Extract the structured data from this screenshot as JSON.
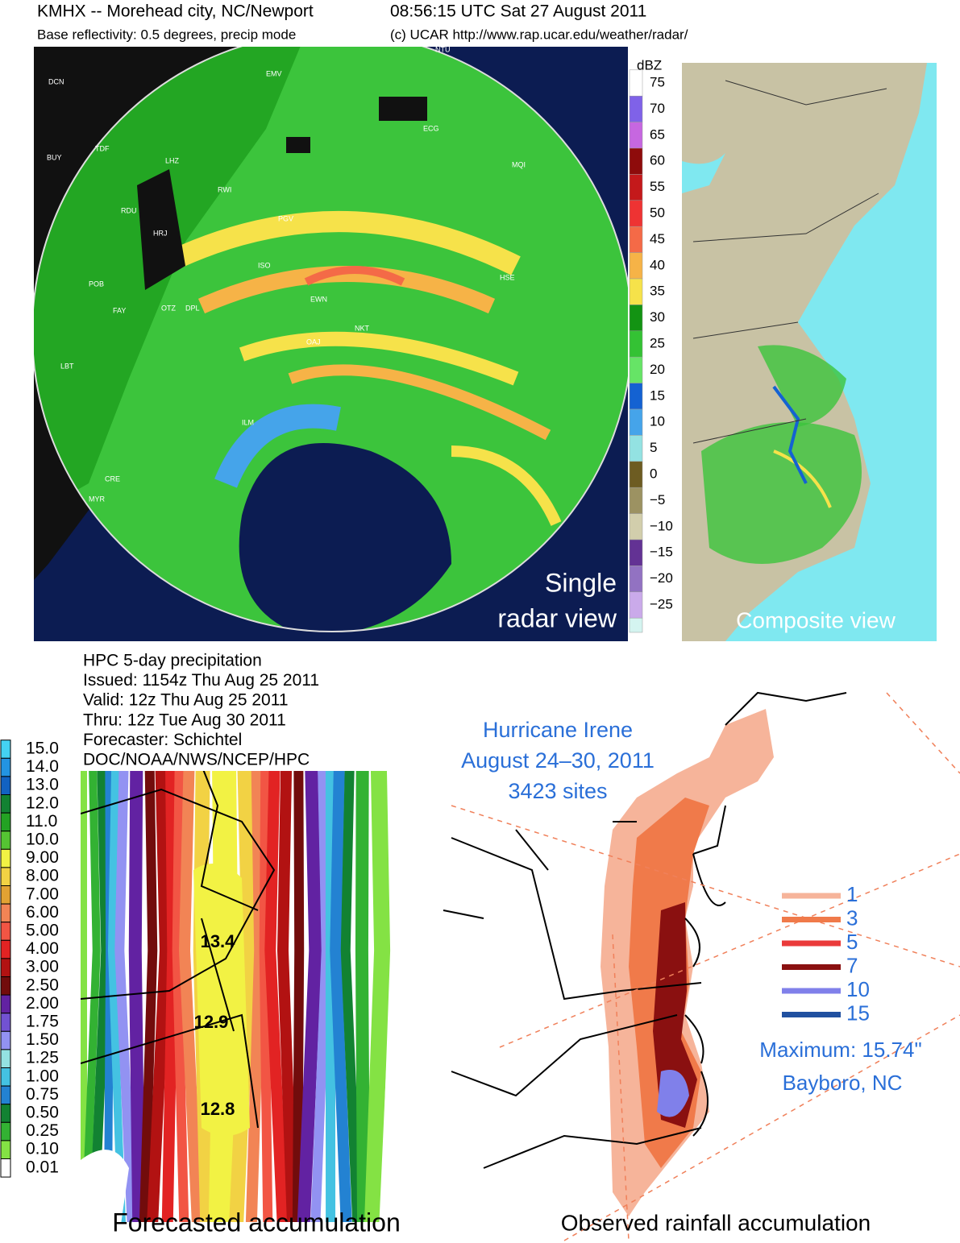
{
  "radar": {
    "header": {
      "station": "KMHX -- Morehead city, NC/Newport",
      "time": "08:56:15 UTC Sat 27 August 2011",
      "product": "Base reflectivity: 0.5 degrees, precip mode",
      "credit": "(c) UCAR http://www.rap.ucar.edu/weather/radar/"
    },
    "single_caption": [
      "Single",
      "radar view"
    ],
    "composite_caption": "Composite view",
    "stations": [
      "DCN",
      "TDF",
      "BUY",
      "LHZ",
      "RDU",
      "RWI",
      "PGV",
      "ECG",
      "HSE",
      "EWN",
      "NKT",
      "MQI",
      "OAJ",
      "ILM",
      "FAY",
      "POB",
      "CRE",
      "MYR",
      "LBT",
      "HRJ",
      "DPL",
      "ISO",
      "OTZ",
      "NTU",
      "EMV"
    ],
    "legend": {
      "unit": "dBZ",
      "items": [
        {
          "label": "75",
          "color": "#ffffff"
        },
        {
          "label": "70",
          "color": "#7f62e8"
        },
        {
          "label": "65",
          "color": "#c667e0"
        },
        {
          "label": "60",
          "color": "#8e0b0b"
        },
        {
          "label": "55",
          "color": "#c4191b"
        },
        {
          "label": "50",
          "color": "#ee3333"
        },
        {
          "label": "45",
          "color": "#f46a47"
        },
        {
          "label": "40",
          "color": "#f6b347"
        },
        {
          "label": "35",
          "color": "#f6e24a"
        },
        {
          "label": "30",
          "color": "#139313"
        },
        {
          "label": "25",
          "color": "#34c234"
        },
        {
          "label": "20",
          "color": "#66e466"
        },
        {
          "label": "15",
          "color": "#1462d2"
        },
        {
          "label": "10",
          "color": "#45a4ea"
        },
        {
          "label": "5",
          "color": "#93e2e2"
        },
        {
          "label": "0",
          "color": "#6d5c22"
        },
        {
          "label": "−5",
          "color": "#9c9262"
        },
        {
          "label": "−10",
          "color": "#d2ceac"
        },
        {
          "label": "−15",
          "color": "#633294"
        },
        {
          "label": "−20",
          "color": "#9272c2"
        },
        {
          "label": "−25",
          "color": "#caaaea"
        }
      ]
    }
  },
  "forecast": {
    "header": [
      "HPC 5-day precipitation",
      "Issued: 1154z Thu Aug 25 2011",
      "Valid: 12z Thu Aug 25 2011",
      "Thru: 12z Tue Aug 30 2011",
      "Forecaster: Schichtel",
      "DOC/NOAA/NWS/NCEP/HPC"
    ],
    "map_labels": [
      "13.4",
      "12.9",
      "12.8"
    ],
    "caption": "Forecasted accumulation",
    "legend": [
      {
        "label": "15.0",
        "color": "#44d2f2"
      },
      {
        "label": "14.0",
        "color": "#2394e2"
      },
      {
        "label": "13.0",
        "color": "#1262c2"
      },
      {
        "label": "12.0",
        "color": "#128232"
      },
      {
        "label": "11.0",
        "color": "#23a223"
      },
      {
        "label": "10.0",
        "color": "#55c433"
      },
      {
        "label": "9.00",
        "color": "#f2f244"
      },
      {
        "label": "8.00",
        "color": "#f2d244"
      },
      {
        "label": "7.00",
        "color": "#e2a233"
      },
      {
        "label": "6.00",
        "color": "#f28455"
      },
      {
        "label": "5.00",
        "color": "#f25544"
      },
      {
        "label": "4.00",
        "color": "#e22323"
      },
      {
        "label": "3.00",
        "color": "#b21212"
      },
      {
        "label": "2.50",
        "color": "#720c0c"
      },
      {
        "label": "2.00",
        "color": "#6222a2"
      },
      {
        "label": "1.75",
        "color": "#7252d2"
      },
      {
        "label": "1.50",
        "color": "#9292f2"
      },
      {
        "label": "1.25",
        "color": "#94e2e2"
      },
      {
        "label": "1.00",
        "color": "#44c2e2"
      },
      {
        "label": "0.75",
        "color": "#2382d2"
      },
      {
        "label": "0.50",
        "color": "#128232"
      },
      {
        "label": "0.25",
        "color": "#33b233"
      },
      {
        "label": "0.10",
        "color": "#84e244"
      },
      {
        "label": "0.01",
        "color": "#ffffff"
      }
    ]
  },
  "observed": {
    "title": [
      "Hurricane Irene",
      "August 24–30, 2011",
      "3423 sites"
    ],
    "legend": [
      {
        "label": "1",
        "color": "#f6b49a"
      },
      {
        "label": "3",
        "color": "#f07a4a"
      },
      {
        "label": "5",
        "color": "#ea3a3a"
      },
      {
        "label": "7",
        "color": "#8a1010"
      },
      {
        "label": "10",
        "color": "#8080ea"
      },
      {
        "label": "15",
        "color": "#2050a0"
      }
    ],
    "maximum": [
      "Maximum: 15.74\"",
      "Bayboro, NC"
    ],
    "caption": "Observed rainfall accumulation"
  }
}
